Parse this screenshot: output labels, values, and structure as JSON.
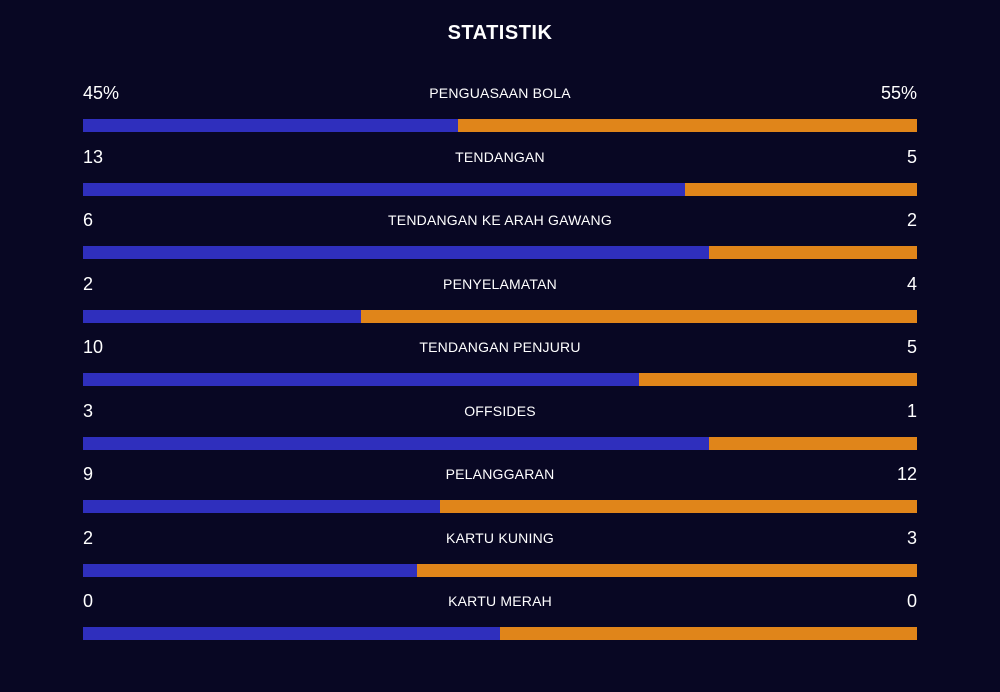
{
  "title": "STATISTIK",
  "colors": {
    "background": "#080723",
    "home_bar": "#2f2fbd",
    "away_bar": "#e0851a",
    "text": "#ffffff"
  },
  "stats": [
    {
      "label": "PENGUASAAN BOLA",
      "home": "45%",
      "away": "55%",
      "home_value": 45,
      "away_value": 55
    },
    {
      "label": "TENDANGAN",
      "home": "13",
      "away": "5",
      "home_value": 13,
      "away_value": 5
    },
    {
      "label": "TENDANGAN KE ARAH GAWANG",
      "home": "6",
      "away": "2",
      "home_value": 6,
      "away_value": 2
    },
    {
      "label": "PENYELAMATAN",
      "home": "2",
      "away": "4",
      "home_value": 2,
      "away_value": 4
    },
    {
      "label": "TENDANGAN PENJURU",
      "home": "10",
      "away": "5",
      "home_value": 10,
      "away_value": 5
    },
    {
      "label": "OFFSIDES",
      "home": "3",
      "away": "1",
      "home_value": 3,
      "away_value": 1
    },
    {
      "label": "PELANGGARAN",
      "home": "9",
      "away": "12",
      "home_value": 9,
      "away_value": 12
    },
    {
      "label": "KARTU KUNING",
      "home": "2",
      "away": "3",
      "home_value": 2,
      "away_value": 3
    },
    {
      "label": "KARTU MERAH",
      "home": "0",
      "away": "0",
      "home_value": 0,
      "away_value": 0
    }
  ]
}
